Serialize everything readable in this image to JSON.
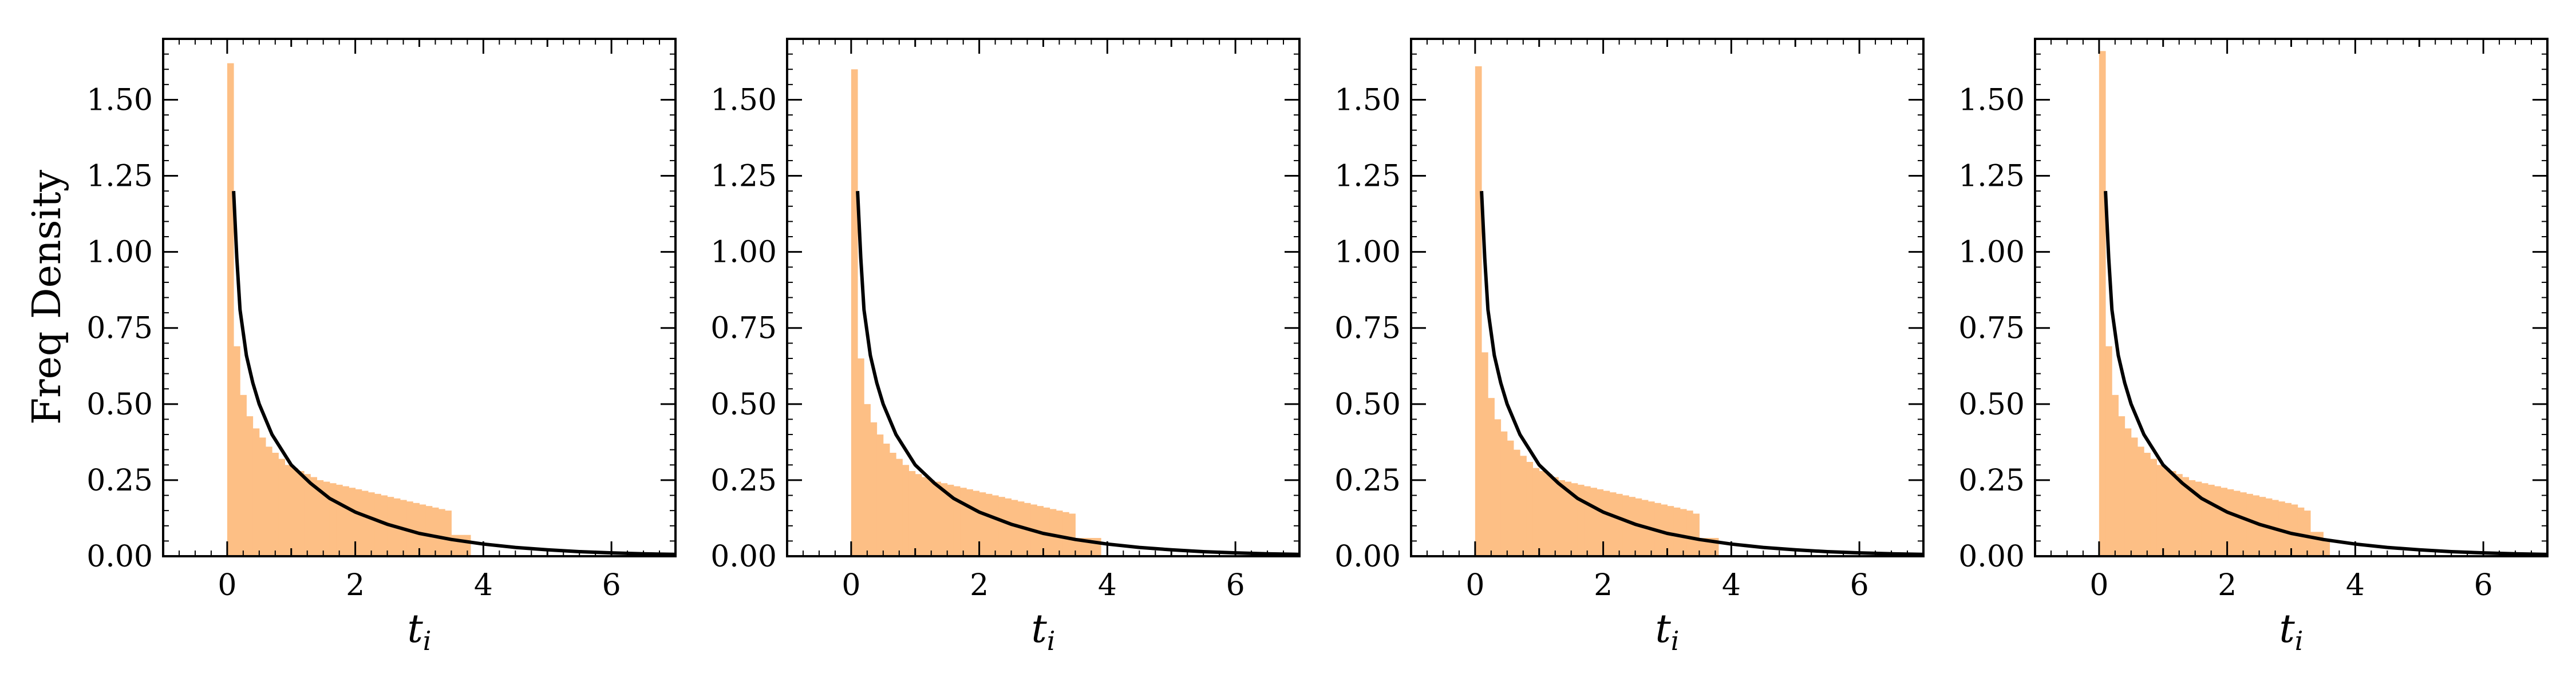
{
  "figure": {
    "ylabel": "Freq Density",
    "xlabel_main": "t",
    "xlabel_sub": "i"
  },
  "colors": {
    "hist": "#fdbf85",
    "curve": "#000000",
    "axes": "#000000"
  },
  "chart_data": [
    {
      "type": "bar",
      "xlim": [
        -1,
        7
      ],
      "ylim": [
        0,
        1.7
      ],
      "xticks": [
        0,
        2,
        4,
        6
      ],
      "yticks": [
        0.0,
        0.25,
        0.5,
        0.75,
        1.0,
        1.25,
        1.5
      ],
      "ytick_labels": [
        "0.00",
        "0.25",
        "0.50",
        "0.75",
        "1.00",
        "1.25",
        "1.50"
      ],
      "xlabel": "t_i",
      "ylabel": "Freq Density",
      "bin_width": 0.1,
      "bin_start": 0,
      "hist_values": [
        1.62,
        0.69,
        0.53,
        0.46,
        0.42,
        0.39,
        0.36,
        0.34,
        0.32,
        0.3,
        0.29,
        0.28,
        0.27,
        0.26,
        0.25,
        0.245,
        0.24,
        0.235,
        0.23,
        0.225,
        0.22,
        0.215,
        0.21,
        0.205,
        0.2,
        0.195,
        0.19,
        0.185,
        0.18,
        0.175,
        0.17,
        0.165,
        0.16,
        0.155,
        0.15,
        0.07,
        0.07,
        0.07
      ],
      "curve": {
        "x": [
          0.1,
          0.15,
          0.2,
          0.3,
          0.4,
          0.5,
          0.7,
          1.0,
          1.3,
          1.6,
          2.0,
          2.5,
          3.0,
          3.5,
          4.0,
          4.5,
          5.0,
          5.5,
          6.0,
          6.5,
          7.0
        ],
        "y": [
          1.2,
          0.98,
          0.81,
          0.66,
          0.57,
          0.5,
          0.4,
          0.3,
          0.24,
          0.19,
          0.145,
          0.105,
          0.075,
          0.055,
          0.04,
          0.029,
          0.021,
          0.015,
          0.011,
          0.008,
          0.006
        ]
      }
    },
    {
      "type": "bar",
      "xlim": [
        -1,
        7
      ],
      "ylim": [
        0,
        1.7
      ],
      "xticks": [
        0,
        2,
        4,
        6
      ],
      "yticks": [
        0.0,
        0.25,
        0.5,
        0.75,
        1.0,
        1.25,
        1.5
      ],
      "ytick_labels": [
        "0.00",
        "0.25",
        "0.50",
        "0.75",
        "1.00",
        "1.25",
        "1.50"
      ],
      "xlabel": "t_i",
      "ylabel": "",
      "bin_width": 0.1,
      "bin_start": 0,
      "hist_values": [
        1.6,
        0.65,
        0.5,
        0.44,
        0.4,
        0.37,
        0.34,
        0.32,
        0.3,
        0.28,
        0.27,
        0.26,
        0.25,
        0.245,
        0.24,
        0.235,
        0.23,
        0.225,
        0.22,
        0.215,
        0.21,
        0.205,
        0.2,
        0.195,
        0.19,
        0.185,
        0.18,
        0.175,
        0.17,
        0.165,
        0.16,
        0.155,
        0.15,
        0.145,
        0.14,
        0.06,
        0.06,
        0.06,
        0.06
      ],
      "curve": {
        "x": [
          0.1,
          0.15,
          0.2,
          0.3,
          0.4,
          0.5,
          0.7,
          1.0,
          1.3,
          1.6,
          2.0,
          2.5,
          3.0,
          3.5,
          4.0,
          4.5,
          5.0,
          5.5,
          6.0,
          6.5,
          7.0
        ],
        "y": [
          1.2,
          0.98,
          0.81,
          0.66,
          0.57,
          0.5,
          0.4,
          0.3,
          0.24,
          0.19,
          0.145,
          0.105,
          0.075,
          0.055,
          0.04,
          0.029,
          0.021,
          0.015,
          0.011,
          0.008,
          0.006
        ]
      }
    },
    {
      "type": "bar",
      "xlim": [
        -1,
        7
      ],
      "ylim": [
        0,
        1.7
      ],
      "xticks": [
        0,
        2,
        4,
        6
      ],
      "yticks": [
        0.0,
        0.25,
        0.5,
        0.75,
        1.0,
        1.25,
        1.5
      ],
      "ytick_labels": [
        "0.00",
        "0.25",
        "0.50",
        "0.75",
        "1.00",
        "1.25",
        "1.50"
      ],
      "xlabel": "t_i",
      "ylabel": "",
      "bin_width": 0.1,
      "bin_start": 0,
      "hist_values": [
        1.61,
        0.67,
        0.52,
        0.45,
        0.41,
        0.38,
        0.35,
        0.33,
        0.31,
        0.29,
        0.28,
        0.27,
        0.26,
        0.25,
        0.245,
        0.24,
        0.235,
        0.23,
        0.225,
        0.22,
        0.215,
        0.21,
        0.205,
        0.2,
        0.195,
        0.19,
        0.185,
        0.18,
        0.175,
        0.17,
        0.165,
        0.16,
        0.155,
        0.15,
        0.14,
        0.06,
        0.06,
        0.06
      ],
      "curve": {
        "x": [
          0.1,
          0.15,
          0.2,
          0.3,
          0.4,
          0.5,
          0.7,
          1.0,
          1.3,
          1.6,
          2.0,
          2.5,
          3.0,
          3.5,
          4.0,
          4.5,
          5.0,
          5.5,
          6.0,
          6.5,
          7.0
        ],
        "y": [
          1.2,
          0.98,
          0.81,
          0.66,
          0.57,
          0.5,
          0.4,
          0.3,
          0.24,
          0.19,
          0.145,
          0.105,
          0.075,
          0.055,
          0.04,
          0.029,
          0.021,
          0.015,
          0.011,
          0.008,
          0.006
        ]
      }
    },
    {
      "type": "bar",
      "xlim": [
        -1,
        7
      ],
      "ylim": [
        0,
        1.7
      ],
      "xticks": [
        0,
        2,
        4,
        6
      ],
      "yticks": [
        0.0,
        0.25,
        0.5,
        0.75,
        1.0,
        1.25,
        1.5
      ],
      "ytick_labels": [
        "0.00",
        "0.25",
        "0.50",
        "0.75",
        "1.00",
        "1.25",
        "1.50"
      ],
      "xlabel": "t_i",
      "ylabel": "",
      "bin_width": 0.1,
      "bin_start": 0,
      "hist_values": [
        1.66,
        0.69,
        0.53,
        0.46,
        0.42,
        0.39,
        0.36,
        0.34,
        0.32,
        0.3,
        0.29,
        0.28,
        0.27,
        0.26,
        0.25,
        0.245,
        0.24,
        0.235,
        0.23,
        0.225,
        0.22,
        0.215,
        0.21,
        0.205,
        0.2,
        0.195,
        0.19,
        0.185,
        0.18,
        0.175,
        0.17,
        0.16,
        0.15,
        0.08,
        0.08,
        0.05
      ],
      "curve": {
        "x": [
          0.1,
          0.15,
          0.2,
          0.3,
          0.4,
          0.5,
          0.7,
          1.0,
          1.3,
          1.6,
          2.0,
          2.5,
          3.0,
          3.5,
          4.0,
          4.5,
          5.0,
          5.5,
          6.0,
          6.5,
          7.0
        ],
        "y": [
          1.2,
          0.98,
          0.81,
          0.66,
          0.57,
          0.5,
          0.4,
          0.3,
          0.24,
          0.19,
          0.145,
          0.105,
          0.075,
          0.055,
          0.04,
          0.029,
          0.021,
          0.015,
          0.011,
          0.008,
          0.006
        ]
      }
    }
  ]
}
